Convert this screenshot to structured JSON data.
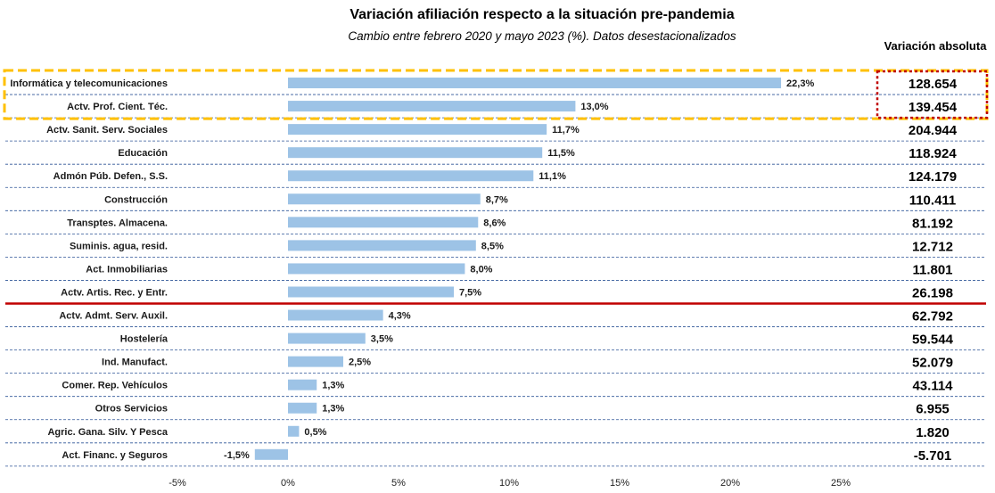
{
  "header": {
    "title": "Variación afiliación respecto a la situación pre-pandemia",
    "subtitle": "Cambio entre febrero 2020 y mayo 2023 (%). Datos desestacionalizados",
    "abs_column_title": "Variación absoluta"
  },
  "colors": {
    "bar": "#9dc3e6",
    "gridline": "#2f5597",
    "highlight_yellow": "#ffc000",
    "highlight_red": "#c00000",
    "divider": "#c00000"
  },
  "chart_data": {
    "type": "bar",
    "orientation": "horizontal",
    "title": "Variación afiliación respecto a la situación pre-pandemia",
    "subtitle": "Cambio entre febrero 2020 y mayo 2023 (%). Datos desestacionalizados",
    "categories": [
      "Informática y telecomunicaciones",
      "Actv. Prof. Cient. Téc.",
      "Actv. Sanit. Serv. Sociales",
      "Educación",
      "Admón Púb. Defen., S.S.",
      "Construcción",
      "Transptes. Almacena.",
      "Suminis. agua, resid.",
      "Act. Inmobiliarias",
      "Actv. Artis. Rec. y Entr.",
      "Actv. Admt. Serv. Auxil.",
      "Hostelería",
      "Ind. Manufact.",
      "Comer. Rep. Vehículos",
      "Otros Servicios",
      "Agric. Gana. Silv. Y Pesca",
      "Act. Financ. y Seguros"
    ],
    "values": [
      22.3,
      13.0,
      11.7,
      11.5,
      11.1,
      8.7,
      8.6,
      8.5,
      8.0,
      7.5,
      4.3,
      3.5,
      2.5,
      1.3,
      1.3,
      0.5,
      -1.5
    ],
    "value_labels": [
      "22,3%",
      "13,0%",
      "11,7%",
      "11,5%",
      "11,1%",
      "8,7%",
      "8,6%",
      "8,5%",
      "8,0%",
      "7,5%",
      "4,3%",
      "3,5%",
      "2,5%",
      "1,3%",
      "1,3%",
      "0,5%",
      "-1,5%"
    ],
    "absolute_variation": [
      "128.654",
      "139.454",
      "204.944",
      "118.924",
      "124.179",
      "110.411",
      "81.192",
      "12.712",
      "11.801",
      "26.198",
      "62.792",
      "59.544",
      "52.079",
      "43.114",
      "6.955",
      "1.820",
      "-5.701"
    ],
    "xlim": [
      -5,
      30
    ],
    "x_ticks": [
      -5,
      0,
      5,
      10,
      15,
      20,
      25
    ],
    "x_tick_labels": [
      "-5%",
      "0%",
      "5%",
      "10%",
      "15%",
      "20%",
      "25%"
    ],
    "grid": "horizontal dashed row separators",
    "highlighted_categories": [
      0,
      1
    ],
    "divider_after_index": 9
  }
}
